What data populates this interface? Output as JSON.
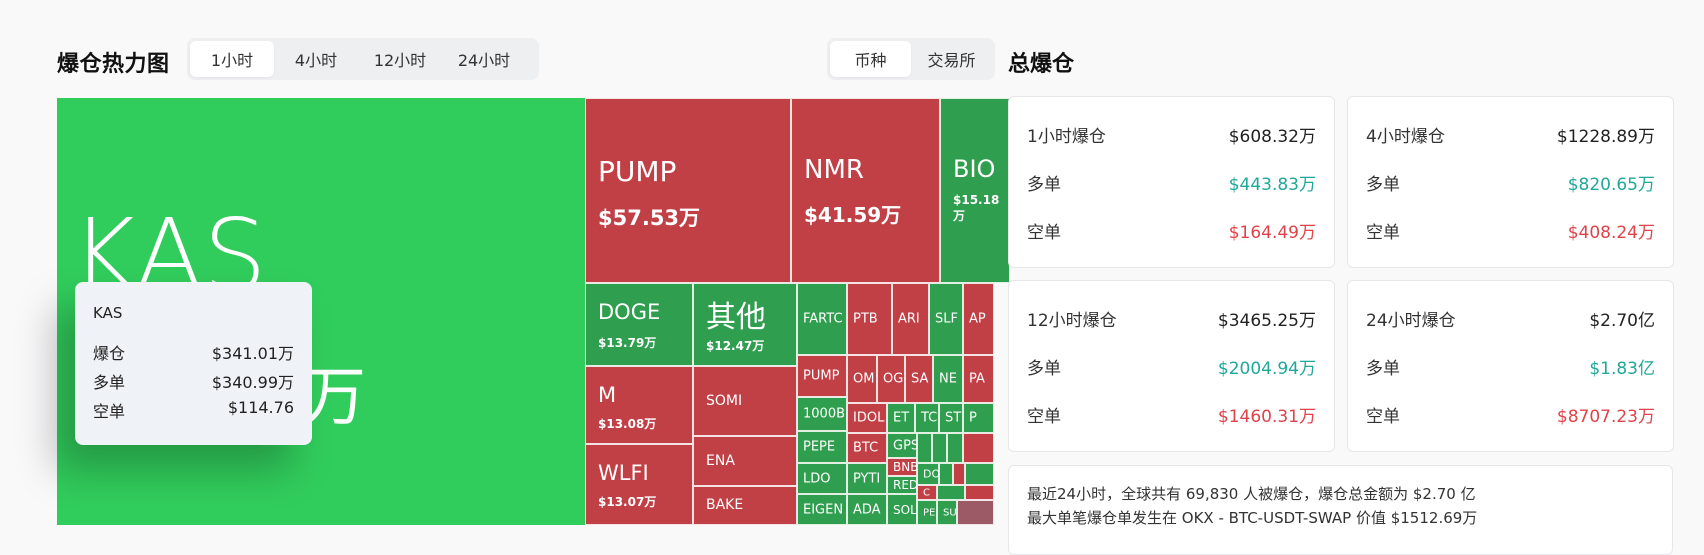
{
  "header": {
    "title": "爆仓热力图",
    "time_tabs": [
      "1小时",
      "4小时",
      "12小时",
      "24小时"
    ],
    "type_tabs": [
      "币种",
      "交易所"
    ],
    "total_title": "总爆仓"
  },
  "treemap": {
    "cells": [
      {
        "name": "KAS",
        "value": "",
        "color": "#31cd5c"
      },
      {
        "name": "PUMP",
        "value": "$57.53万",
        "color": "#c04046"
      },
      {
        "name": "NMR",
        "value": "$41.59万",
        "color": "#c04046"
      },
      {
        "name": "BIO",
        "value": "$15.18万",
        "color": "#2f9e4e"
      },
      {
        "name": "DOGE",
        "value": "$13.79万",
        "color": "#2f9e4e"
      },
      {
        "name": "其他",
        "value": "$12.47万",
        "color": "#2f9e4e"
      },
      {
        "name": "M",
        "value": "$13.08万",
        "color": "#c04046"
      },
      {
        "name": "WLFI",
        "value": "$13.07万",
        "color": "#c04046"
      },
      {
        "name": "SOMI",
        "value": "",
        "color": "#c04046"
      },
      {
        "name": "ENA",
        "value": "",
        "color": "#c04046"
      },
      {
        "name": "BAKE",
        "value": "",
        "color": "#c04046"
      },
      {
        "name": "FARTC",
        "value": "",
        "color": "#2f9e4e"
      },
      {
        "name": "PTB",
        "value": "",
        "color": "#c04046"
      },
      {
        "name": "ARI",
        "value": "",
        "color": "#c04046"
      },
      {
        "name": "SLF",
        "value": "",
        "color": "#2f9e4e"
      },
      {
        "name": "AP",
        "value": "",
        "color": "#c04046"
      },
      {
        "name": "PUMP",
        "value": "",
        "color": "#c04046"
      },
      {
        "name": "OM",
        "value": "",
        "color": "#c04046"
      },
      {
        "name": "OG",
        "value": "",
        "color": "#c04046"
      },
      {
        "name": "SA",
        "value": "",
        "color": "#c04046"
      },
      {
        "name": "NE",
        "value": "",
        "color": "#2f9e4e"
      },
      {
        "name": "PA",
        "value": "",
        "color": "#c04046"
      },
      {
        "name": "1000B",
        "value": "",
        "color": "#2f9e4e"
      },
      {
        "name": "IDOL",
        "value": "",
        "color": "#c04046"
      },
      {
        "name": "ET",
        "value": "",
        "color": "#2f9e4e"
      },
      {
        "name": "TC",
        "value": "",
        "color": "#2f9e4e"
      },
      {
        "name": "ST",
        "value": "",
        "color": "#2f9e4e"
      },
      {
        "name": "P",
        "value": "",
        "color": "#2f9e4e"
      },
      {
        "name": "PEPE",
        "value": "",
        "color": "#2f9e4e"
      },
      {
        "name": "BTC",
        "value": "",
        "color": "#c04046"
      },
      {
        "name": "GPS",
        "value": "",
        "color": "#2f9e4e"
      },
      {
        "name": "LDO",
        "value": "",
        "color": "#2f9e4e"
      },
      {
        "name": "PYTI",
        "value": "",
        "color": "#2f9e4e"
      },
      {
        "name": "BNB",
        "value": "",
        "color": "#c04046"
      },
      {
        "name": "DO",
        "value": "",
        "color": "#2f9e4e"
      },
      {
        "name": "RED",
        "value": "",
        "color": "#2f9e4e"
      },
      {
        "name": "C",
        "value": "",
        "color": "#c04046"
      },
      {
        "name": "EIGEN",
        "value": "",
        "color": "#2f9e4e"
      },
      {
        "name": "ADA",
        "value": "",
        "color": "#2f9e4e"
      },
      {
        "name": "SOL",
        "value": "",
        "color": "#2f9e4e"
      },
      {
        "name": "PE",
        "value": "",
        "color": "#2f9e4e"
      },
      {
        "name": "SU",
        "value": "",
        "color": "#2f9e4e"
      }
    ],
    "kas_value_partial": "万"
  },
  "tooltip": {
    "title": "KAS",
    "rows": [
      {
        "label": "爆仓",
        "value": "$341.01万"
      },
      {
        "label": "多单",
        "value": "$340.99万"
      },
      {
        "label": "空单",
        "value": "$114.76"
      }
    ]
  },
  "totals": [
    {
      "period": "1小时爆仓",
      "total": "$608.32万",
      "long_label": "多单",
      "long": "$443.83万",
      "short_label": "空单",
      "short": "$164.49万"
    },
    {
      "period": "4小时爆仓",
      "total": "$1228.89万",
      "long_label": "多单",
      "long": "$820.65万",
      "short_label": "空单",
      "short": "$408.24万"
    },
    {
      "period": "12小时爆仓",
      "total": "$3465.25万",
      "long_label": "多单",
      "long": "$2004.94万",
      "short_label": "空单",
      "short": "$1460.31万"
    },
    {
      "period": "24小时爆仓",
      "total": "$2.70亿",
      "long_label": "多单",
      "long": "$1.83亿",
      "short_label": "空单",
      "short": "$8707.23万"
    }
  ],
  "summary": {
    "line1": "最近24小时，全球共有 69,830 人被爆仓，爆仓总金额为 $2.70 亿",
    "line2": "最大单笔爆仓单发生在 OKX - BTC-USDT-SWAP 价值 $1512.69万"
  },
  "colors": {
    "long_green": "#1fa89a",
    "short_red": "#e0424a",
    "tile_green": "#2f9e4e",
    "tile_red": "#c04046",
    "kas_green": "#31cd5c"
  }
}
